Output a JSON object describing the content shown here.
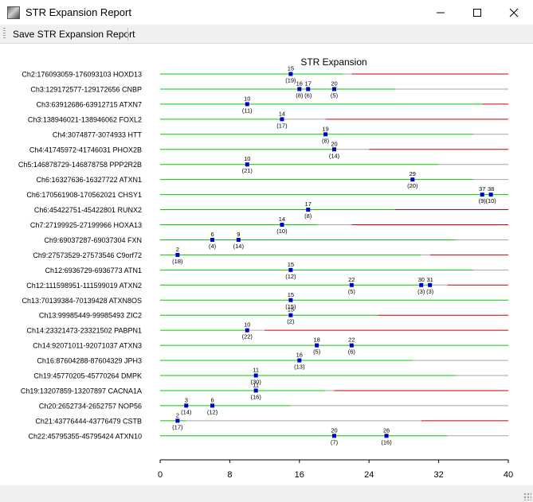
{
  "window": {
    "title": "STR Expansion Report",
    "app_icon": "report-icon"
  },
  "menubar": {
    "save_label": "Save STR Expansion Report"
  },
  "chart_data": {
    "type": "scatter",
    "title": "STR Expansion",
    "xlim": [
      0,
      40
    ],
    "x_ticks": [
      0,
      8,
      16,
      24,
      32,
      40
    ],
    "colors": {
      "normal": "#00cc00",
      "expanded": "#cc0000",
      "neutral": "#a6a6a6",
      "marker": "#0000cc"
    },
    "loci": [
      {
        "label": "Ch2:176093059-176093103 HOXD13",
        "normal_max": 21,
        "expanded_min": 22,
        "points": [
          {
            "repeats": 15,
            "count": 19
          }
        ]
      },
      {
        "label": "Ch3:129172577-129172656 CNBP",
        "normal_max": 27,
        "expanded_min": 40,
        "points": [
          {
            "repeats": 16,
            "count": 8
          },
          {
            "repeats": 17,
            "count": 6
          },
          {
            "repeats": 20,
            "count": 5
          }
        ]
      },
      {
        "label": "Ch3:63912686-63912715 ATXN7",
        "normal_max": 37,
        "expanded_min": 37,
        "points": [
          {
            "repeats": 10,
            "count": 11
          }
        ]
      },
      {
        "label": "Ch3:138946021-138946062 FOXL2",
        "normal_max": 14,
        "expanded_min": 19,
        "points": [
          {
            "repeats": 14,
            "count": 17
          }
        ]
      },
      {
        "label": "Ch4:3074877-3074933 HTT",
        "normal_max": 36,
        "expanded_min": 40,
        "points": [
          {
            "repeats": 19,
            "count": 8
          }
        ]
      },
      {
        "label": "Ch4:41745972-41746031 PHOX2B",
        "normal_max": 20,
        "expanded_min": 24,
        "points": [
          {
            "repeats": 20,
            "count": 14
          }
        ]
      },
      {
        "label": "Ch5:146878729-146878758 PPP2R2B",
        "normal_max": 32,
        "expanded_min": 40,
        "points": [
          {
            "repeats": 10,
            "count": 21
          }
        ]
      },
      {
        "label": "Ch6:16327636-16327722 ATXN1",
        "normal_max": 36,
        "expanded_min": 40,
        "points": [
          {
            "repeats": 29,
            "count": 20
          }
        ]
      },
      {
        "label": "Ch6:170561908-170562021 CHSY1",
        "normal_max": 40,
        "expanded_min": 40,
        "points": [
          {
            "repeats": 37,
            "count": 9
          },
          {
            "repeats": 38,
            "count": 10
          }
        ]
      },
      {
        "label": "Ch6:45422751-45422801 RUNX2",
        "normal_max": 27,
        "expanded_min": 27,
        "points": [
          {
            "repeats": 17,
            "count": 8
          }
        ]
      },
      {
        "label": "Ch7:27199925-27199966 HOXA13",
        "normal_max": 18,
        "expanded_min": 22,
        "points": [
          {
            "repeats": 14,
            "count": 10
          }
        ]
      },
      {
        "label": "Ch9:69037287-69037304 FXN",
        "normal_max": 34,
        "expanded_min": 40,
        "points": [
          {
            "repeats": 6,
            "count": 4
          },
          {
            "repeats": 9,
            "count": 14
          }
        ]
      },
      {
        "label": "Ch9:27573529-27573546 C9orf72",
        "normal_max": 30,
        "expanded_min": 31,
        "points": [
          {
            "repeats": 2,
            "count": 18
          }
        ]
      },
      {
        "label": "Ch12:6936729-6936773 ATN1",
        "normal_max": 36,
        "expanded_min": 40,
        "points": [
          {
            "repeats": 15,
            "count": 12
          }
        ]
      },
      {
        "label": "Ch12:111598951-111599019 ATXN2",
        "normal_max": 31,
        "expanded_min": 33,
        "points": [
          {
            "repeats": 22,
            "count": 5
          },
          {
            "repeats": 30,
            "count": 3
          },
          {
            "repeats": 31,
            "count": 3
          }
        ]
      },
      {
        "label": "Ch13:70139384-70139428 ATXN8OS",
        "normal_max": 40,
        "expanded_min": 40,
        "points": [
          {
            "repeats": 15,
            "count": 15
          }
        ]
      },
      {
        "label": "Ch13:99985449-99985493 ZIC2",
        "normal_max": 25,
        "expanded_min": 25,
        "points": [
          {
            "repeats": 15,
            "count": 2
          }
        ]
      },
      {
        "label": "Ch14:23321473-23321502 PABPN1",
        "normal_max": 10,
        "expanded_min": 12,
        "points": [
          {
            "repeats": 10,
            "count": 22
          }
        ]
      },
      {
        "label": "Ch14:92071011-92071037 ATXN3",
        "normal_max": 40,
        "expanded_min": 40,
        "points": [
          {
            "repeats": 18,
            "count": 5
          },
          {
            "repeats": 22,
            "count": 6
          }
        ]
      },
      {
        "label": "Ch16:87604288-87604329 JPH3",
        "normal_max": 29,
        "expanded_min": 40,
        "points": [
          {
            "repeats": 16,
            "count": 13
          }
        ]
      },
      {
        "label": "Ch19:45770205-45770264 DMPK",
        "normal_max": 34,
        "expanded_min": 40,
        "points": [
          {
            "repeats": 11,
            "count": 30
          }
        ]
      },
      {
        "label": "Ch19:13207859-13207897 CACNA1A",
        "normal_max": 19,
        "expanded_min": 20,
        "points": [
          {
            "repeats": 11,
            "count": 16
          }
        ]
      },
      {
        "label": "Ch20:2652734-2652757 NOP56",
        "normal_max": 15,
        "expanded_min": 40,
        "points": [
          {
            "repeats": 3,
            "count": 14
          },
          {
            "repeats": 6,
            "count": 12
          }
        ]
      },
      {
        "label": "Ch21:43776444-43776479 CSTB",
        "normal_max": 3,
        "expanded_min": 30,
        "points": [
          {
            "repeats": 2,
            "count": 17
          }
        ]
      },
      {
        "label": "Ch22:45795355-45795424 ATXN10",
        "normal_max": 33,
        "expanded_min": 40,
        "points": [
          {
            "repeats": 20,
            "count": 7
          },
          {
            "repeats": 26,
            "count": 16
          }
        ]
      }
    ]
  }
}
